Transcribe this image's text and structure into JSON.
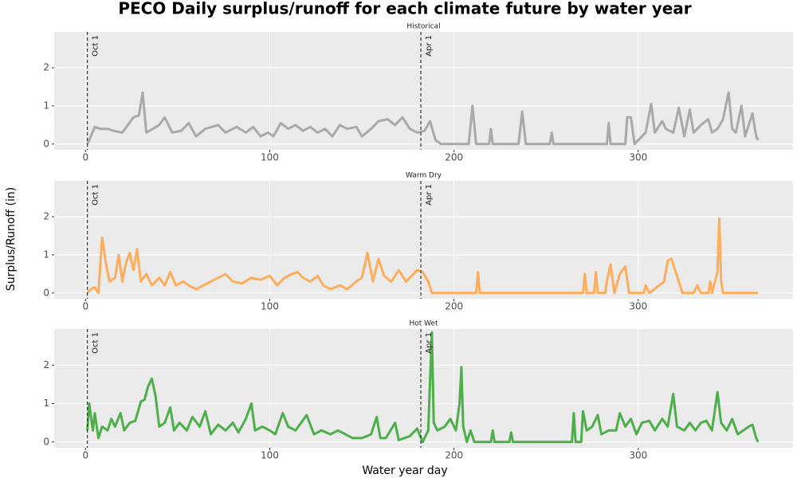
{
  "title": "PECO Daily surplus/runoff for each climate future by water year",
  "x_label": "Water year day",
  "y_label": "Surplus/Runoff (in)",
  "chart_data": [
    {
      "type": "line",
      "title": "Historical",
      "color": "#a9a9a9",
      "grid": true,
      "xlim": [
        -17,
        384
      ],
      "ylim": [
        -0.15,
        2.94
      ],
      "xticks": [
        0,
        100,
        200,
        300
      ],
      "yticks": [
        0,
        1,
        2
      ],
      "vlines": [
        {
          "value": 1,
          "label": "Oct 1"
        },
        {
          "value": 182,
          "label": "Apr 1"
        }
      ],
      "x": [
        1,
        2,
        5,
        8,
        12,
        15,
        20,
        26,
        29,
        31,
        33,
        40,
        43,
        47,
        52,
        56,
        60,
        65,
        72,
        76,
        82,
        87,
        91,
        95,
        99,
        102,
        106,
        110,
        114,
        118,
        122,
        126,
        130,
        134,
        138,
        142,
        147,
        150,
        155,
        159,
        164,
        168,
        172,
        176,
        180,
        184,
        187,
        190,
        193,
        208,
        210,
        212,
        219,
        220,
        221,
        235,
        237,
        239,
        252,
        253,
        254,
        283,
        284,
        285,
        293,
        294,
        296,
        298,
        304,
        307,
        309,
        313,
        315,
        319,
        322,
        325,
        328,
        330,
        334,
        338,
        340,
        343,
        346,
        349,
        351,
        353,
        356,
        358,
        362,
        364,
        365
      ],
      "values": [
        0,
        0.1,
        0.45,
        0.4,
        0.4,
        0.35,
        0.3,
        0.7,
        0.75,
        1.35,
        0.3,
        0.5,
        0.7,
        0.3,
        0.35,
        0.55,
        0.2,
        0.4,
        0.5,
        0.3,
        0.45,
        0.3,
        0.45,
        0.2,
        0.3,
        0.2,
        0.55,
        0.4,
        0.5,
        0.35,
        0.45,
        0.3,
        0.4,
        0.2,
        0.5,
        0.4,
        0.45,
        0.2,
        0.4,
        0.6,
        0.65,
        0.5,
        0.7,
        0.4,
        0.3,
        0.35,
        0.6,
        0.1,
        0,
        0,
        1.0,
        0,
        0,
        0.4,
        0,
        0,
        0.85,
        0,
        0,
        0.3,
        0,
        0,
        0.55,
        0,
        0,
        0.7,
        0.7,
        0,
        0.3,
        1.05,
        0.3,
        0.6,
        0.4,
        0.3,
        0.95,
        0.2,
        0.9,
        0.3,
        0.5,
        0.65,
        0.3,
        0.4,
        0.65,
        1.35,
        0.4,
        0.3,
        1.0,
        0.2,
        0.8,
        0.2,
        0.1
      ]
    },
    {
      "type": "line",
      "title": "Warm Dry",
      "color": "#fdad5c",
      "grid": true,
      "xlim": [
        -17,
        384
      ],
      "ylim": [
        -0.15,
        2.94
      ],
      "xticks": [
        0,
        100,
        200,
        300
      ],
      "yticks": [
        0,
        1,
        2
      ],
      "vlines": [
        {
          "value": 1,
          "label": "Oct 1"
        },
        {
          "value": 182,
          "label": "Apr 1"
        }
      ],
      "x": [
        1,
        3,
        5,
        7,
        9,
        11,
        13,
        16,
        18,
        20,
        22,
        24,
        26,
        28,
        30,
        33,
        36,
        40,
        43,
        46,
        49,
        53,
        56,
        60,
        64,
        70,
        76,
        80,
        85,
        90,
        95,
        100,
        104,
        108,
        112,
        115,
        118,
        122,
        126,
        129,
        133,
        138,
        142,
        147,
        150,
        153,
        156,
        159,
        162,
        166,
        170,
        174,
        178,
        180,
        183,
        186,
        188,
        212,
        213,
        214,
        270,
        271,
        272,
        276,
        277,
        278,
        282,
        283,
        285,
        287,
        290,
        293,
        295,
        303,
        304,
        306,
        314,
        316,
        318,
        320,
        322,
        324,
        330,
        332,
        334,
        338,
        339,
        340,
        343,
        344,
        345,
        346,
        365
      ],
      "values": [
        0,
        0.1,
        0.15,
        0,
        1.45,
        0.8,
        0.3,
        0.4,
        1.0,
        0.3,
        0.8,
        1.05,
        0.6,
        1.15,
        0.3,
        0.5,
        0.2,
        0.4,
        0.2,
        0.55,
        0.2,
        0.3,
        0.2,
        0.1,
        0.2,
        0.35,
        0.5,
        0.3,
        0.25,
        0.4,
        0.35,
        0.45,
        0.2,
        0.4,
        0.5,
        0.55,
        0.4,
        0.3,
        0.45,
        0.2,
        0.1,
        0.2,
        0.1,
        0.3,
        0.4,
        1.05,
        0.3,
        0.9,
        0.45,
        0.3,
        0.6,
        0.3,
        0.5,
        0.6,
        0.55,
        0.3,
        0,
        0,
        0.55,
        0,
        0,
        0.5,
        0,
        0,
        0.55,
        0,
        0,
        0.3,
        0.75,
        0,
        0.5,
        0.7,
        0,
        0,
        0.2,
        0,
        0.3,
        0.85,
        0.9,
        0.6,
        0.3,
        0,
        0,
        0.2,
        0,
        0,
        0.3,
        0,
        0.55,
        1.95,
        0.3,
        0,
        0
      ]
    },
    {
      "type": "line",
      "title": "Hot Wet",
      "color": "#4daf4a",
      "grid": true,
      "xlim": [
        -17,
        384
      ],
      "ylim": [
        -0.15,
        2.94
      ],
      "xticks": [
        0,
        100,
        200,
        300
      ],
      "yticks": [
        0,
        1,
        2
      ],
      "vlines": [
        {
          "value": 1,
          "label": "Oct 1"
        },
        {
          "value": 182,
          "label": "Apr 1"
        }
      ],
      "x": [
        1,
        2,
        4,
        5,
        7,
        9,
        12,
        14,
        16,
        19,
        21,
        24,
        27,
        30,
        32,
        34,
        36,
        38,
        40,
        43,
        46,
        48,
        51,
        55,
        58,
        62,
        65,
        68,
        72,
        76,
        80,
        83,
        87,
        90,
        92,
        96,
        100,
        103,
        107,
        110,
        114,
        117,
        120,
        124,
        128,
        133,
        137,
        141,
        145,
        150,
        155,
        158,
        160,
        163,
        168,
        170,
        176,
        180,
        183,
        186,
        188,
        189,
        191,
        195,
        198,
        201,
        203,
        204,
        205,
        207,
        209,
        211,
        220,
        221,
        222,
        230,
        231,
        232,
        264,
        265,
        266,
        269,
        270,
        272,
        275,
        278,
        280,
        284,
        288,
        290,
        293,
        296,
        299,
        302,
        306,
        309,
        313,
        316,
        319,
        321,
        325,
        328,
        331,
        334,
        337,
        340,
        343,
        345,
        348,
        351,
        354,
        357,
        360,
        362,
        364,
        365
      ],
      "values": [
        0.3,
        1.0,
        0.3,
        0.75,
        0.1,
        0.4,
        0.3,
        0.6,
        0.4,
        0.75,
        0.3,
        0.5,
        0.55,
        1.05,
        1.1,
        1.45,
        1.65,
        1.2,
        0.4,
        0.5,
        0.9,
        0.3,
        0.5,
        0.3,
        0.65,
        0.4,
        0.8,
        0.2,
        0.45,
        0.3,
        0.5,
        0.25,
        0.6,
        1.0,
        0.3,
        0.4,
        0.3,
        0.2,
        0.75,
        0.4,
        0.3,
        0.5,
        0.7,
        0.2,
        0.3,
        0.2,
        0.3,
        0.2,
        0.1,
        0.1,
        0.2,
        0.65,
        0.1,
        0.1,
        0.5,
        0.05,
        0.15,
        0.35,
        0,
        0.3,
        2.85,
        0.5,
        0.3,
        0.4,
        0.6,
        0.3,
        1.0,
        1.95,
        0.4,
        0,
        0.3,
        0,
        0,
        0.3,
        0,
        0,
        0.25,
        0,
        0,
        0.75,
        0,
        0,
        0.8,
        0.3,
        0.4,
        0.7,
        0.2,
        0.3,
        0.3,
        0.75,
        0.4,
        0.6,
        0.2,
        0.5,
        0.55,
        0.3,
        0.6,
        0.4,
        1.25,
        0.4,
        0.3,
        0.5,
        0.3,
        0.5,
        0.55,
        0.3,
        1.3,
        0.5,
        0.3,
        0.6,
        0.2,
        0.3,
        0.4,
        0.45,
        0.1,
        0
      ]
    }
  ]
}
